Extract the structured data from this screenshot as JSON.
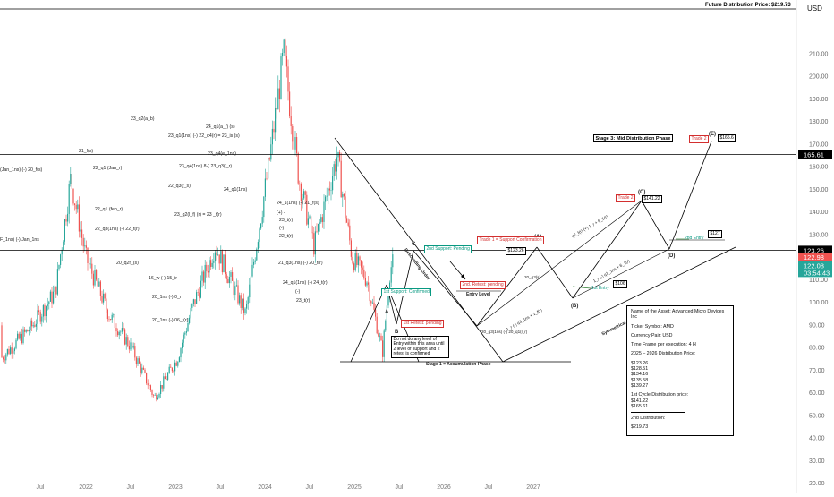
{
  "header": {
    "future_distribution": "Future Distribution Price: $219.73",
    "currency": "USD"
  },
  "colors": {
    "up": "#26a69a",
    "down": "#ef5350",
    "last_price_bg": "#ef5350",
    "support_green": "#089981",
    "retest_red": "#d32f2f",
    "dark": "#000000"
  },
  "chart_data": {
    "type": "candlestick",
    "title": "",
    "xlabel": "",
    "ylabel": "USD",
    "ylim": [
      20,
      230
    ],
    "yticks": [
      20,
      30,
      40,
      50,
      60,
      70,
      80,
      90,
      100,
      110,
      120,
      130,
      140,
      150,
      160,
      170,
      180,
      190,
      200,
      210
    ],
    "xticks": [
      "Jul",
      "2022",
      "Jul",
      "2023",
      "Jul",
      "2024",
      "Jul",
      "2025",
      "Jul",
      "2026",
      "Jul",
      "2027"
    ],
    "approx_price_path": [
      {
        "date": "2021-06",
        "price": 90
      },
      {
        "date": "2021-09",
        "price": 105
      },
      {
        "date": "2021-11",
        "price": 155
      },
      {
        "date": "2022-01",
        "price": 120
      },
      {
        "date": "2022-04",
        "price": 95
      },
      {
        "date": "2022-07",
        "price": 80
      },
      {
        "date": "2022-10",
        "price": 58
      },
      {
        "date": "2023-01",
        "price": 75
      },
      {
        "date": "2023-03",
        "price": 98
      },
      {
        "date": "2023-06",
        "price": 125
      },
      {
        "date": "2023-10",
        "price": 95
      },
      {
        "date": "2024-01",
        "price": 160
      },
      {
        "date": "2024-03",
        "price": 210
      },
      {
        "date": "2024-05",
        "price": 155
      },
      {
        "date": "2024-07",
        "price": 125
      },
      {
        "date": "2024-10",
        "price": 165
      },
      {
        "date": "2024-12",
        "price": 120
      },
      {
        "date": "2025-02",
        "price": 110
      },
      {
        "date": "2025-04",
        "price": 78
      },
      {
        "date": "2025-05",
        "price": 115
      },
      {
        "date": "2025-06",
        "price": 122
      }
    ],
    "horizontal_lines": [
      {
        "price": 165.61,
        "label": "165.61"
      },
      {
        "price": 123.26,
        "label": "123.26"
      }
    ],
    "price_labels": [
      {
        "value": "165.61",
        "style": "dark"
      },
      {
        "value": "123.26",
        "style": "dark"
      },
      {
        "value": "122.98",
        "style": "red"
      },
      {
        "value": "122.08",
        "style": "green"
      },
      {
        "value": "03:54:43",
        "style": "green"
      }
    ]
  },
  "annotations": {
    "sublabels": [
      "(Jan_1ns) (-) 20_f(s)",
      "21_f(s)",
      "22_q1 (Jan_r)",
      "22_q1 (feb_r)",
      "22_q3(1ns) (-) 22_t(r)",
      "F_1ns) (-) Jan_1ns",
      "20_q2f_(s)",
      "16_w (-) 15_ir",
      "20_1ns (-) 0_r",
      "20_1ns (-) 06_t(r)",
      "23_q2(a_b)",
      "24_q1(a_f) (s)",
      "23_q1(1ns) (-) 22_q4(r) = 23_is (s)",
      "23_q4(e_1ns)",
      "23_q4(1ns) 8-) 23_q3(l_r)",
      "22_q3(f_s)",
      "24_q1(1ns)",
      "23_q2(l_f) (r) = 23 _t(r)",
      "24_1(1ns) (-) 21_f(s)",
      "(+) -",
      "23_t(r)",
      "(-)",
      "22_t(r)",
      "21_q3(1ns) (-) 20_t(r)",
      "24_q1(1ns) (-) 24_t(r)",
      "(-)",
      "23_t(r)"
    ],
    "letters": [
      "A",
      "B",
      "C",
      "(A)",
      "(B)",
      "(C)",
      "(D)",
      "(E)"
    ],
    "boxes": [
      {
        "text": "Stage 3: Mid Distribution Phase",
        "style": "dark"
      },
      {
        "text": "Trade 2",
        "style": "red"
      },
      {
        "text": "$165.6",
        "style": "dark"
      },
      {
        "text": "Trade 2",
        "style": "red"
      },
      {
        "text": "$141.22",
        "style": "dark"
      },
      {
        "text": "$127",
        "style": "dark"
      },
      {
        "text": "$106",
        "style": "dark"
      },
      {
        "text": "$123.26",
        "style": "dark"
      },
      {
        "text": "Trade 1 = Support Confirmation",
        "style": "red"
      },
      {
        "text": "2nd Support: Pending",
        "style": "green"
      },
      {
        "text": "1st Support: Confirmed",
        "style": "green"
      },
      {
        "text": "2nd. Retest: pending",
        "style": "red"
      },
      {
        "text": "1st Retest: pending",
        "style": "red"
      },
      {
        "text": "Do not do any level of Entry within this area until 2 level of support and 2 retest is confirmed",
        "style": "dark"
      }
    ],
    "phase_labels": {
      "accumulation": "Stage 1 = Accumulation Phase",
      "entry_level": "Entry Level",
      "first_entry": "1st Entry",
      "second_entry": "2nd Entry",
      "symmetrical": "Symmetrical Order",
      "descending": "Descending Order"
    },
    "wave_labels": [
      "q2_f(r) (+) 1_r + 6_1(r)",
      "1_r (-) q3_1ns + 1_f(r)",
      "20_q3(s)",
      "20_q3(1ns) (-) 20_q1(l_r)",
      "1_r (-) q1_1ns + 6_1(r)"
    ]
  },
  "info_box": {
    "asset": "Name of the Asset: Advanced Micro Devices Inc",
    "ticker": "Ticker Symbol: AMD",
    "currency": "Currency Pair: USD",
    "timeframe": "Time Frame per execution: 4 H",
    "dist_title": "2025 – 2026 Distribution Price:",
    "dist_prices": [
      "$123.26",
      "$128.51",
      "$134.16",
      "$135.58",
      "$139.27"
    ],
    "cycle_title": "1st Cycle Distribution price:",
    "cycle_prices": [
      "$141.22",
      "$165.61"
    ],
    "second_title": "2nd Distribution:",
    "second_price": "$219.73"
  }
}
